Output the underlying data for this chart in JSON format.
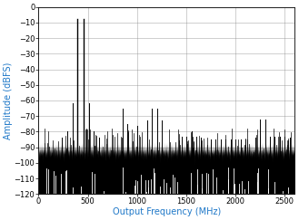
{
  "title": "",
  "xlabel": "Output Frequency (MHz)",
  "ylabel": "Amplitude (dBFS)",
  "xlim": [
    0,
    2600
  ],
  "ylim": [
    -120,
    0
  ],
  "yticks": [
    0,
    -10,
    -20,
    -30,
    -40,
    -50,
    -60,
    -70,
    -80,
    -90,
    -100,
    -110,
    -120
  ],
  "xticks": [
    0,
    500,
    1000,
    1500,
    2000,
    2500
  ],
  "label_color": "#1F78C8",
  "noise_floor_mean": -92,
  "noise_floor_std": 2.5,
  "background_color": "#ffffff",
  "grid_color": "#888888",
  "label_fontsize": 7,
  "tick_fontsize": 6,
  "seed": 42,
  "fund_freqs": [
    397,
    453
  ],
  "fund_amps": [
    -7.5,
    -7.5
  ],
  "spur_data": [
    [
      344,
      -62
    ],
    [
      510,
      -62
    ],
    [
      291,
      -80
    ],
    [
      557,
      -80
    ],
    [
      238,
      -84
    ],
    [
      610,
      -84
    ],
    [
      850,
      -65
    ],
    [
      1147,
      -65
    ],
    [
      1203,
      -65
    ],
    [
      1100,
      -73
    ],
    [
      1250,
      -73
    ],
    [
      900,
      -75
    ],
    [
      1000,
      -76
    ],
    [
      1450,
      -83
    ],
    [
      1500,
      -83
    ],
    [
      1553,
      -80
    ],
    [
      1600,
      -83
    ],
    [
      1650,
      -84
    ],
    [
      1750,
      -85
    ],
    [
      1800,
      -85
    ],
    [
      1850,
      -85
    ],
    [
      1900,
      -85
    ],
    [
      1950,
      -85
    ],
    [
      2000,
      -85
    ],
    [
      2050,
      -85
    ],
    [
      2100,
      -85
    ],
    [
      2200,
      -84
    ],
    [
      2250,
      -83
    ],
    [
      2300,
      -83
    ],
    [
      2350,
      -83
    ],
    [
      2400,
      -83
    ],
    [
      2450,
      -83
    ],
    [
      2500,
      -83
    ],
    [
      2550,
      -84
    ],
    [
      2250,
      -72
    ],
    [
      2300,
      -72
    ]
  ],
  "random_spur_seed": 100,
  "n_random_spurs": 120,
  "random_spur_freq_range": [
    50,
    2580
  ],
  "random_spur_amp_range": [
    -93,
    -78
  ]
}
